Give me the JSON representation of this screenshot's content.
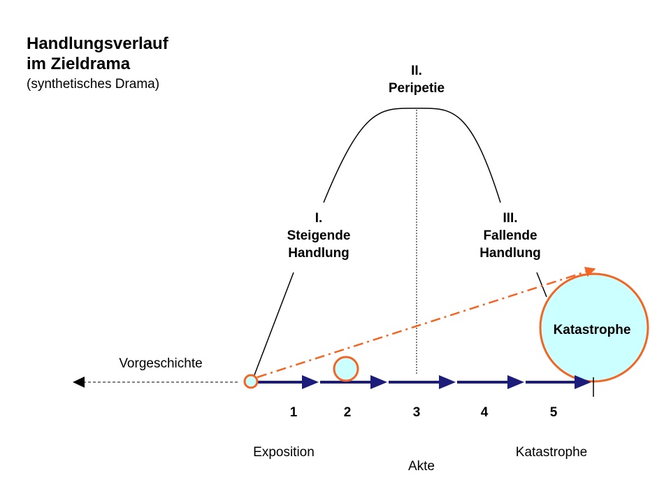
{
  "title": {
    "line1": "Handlungsverlauf",
    "line2": "im Zieldrama",
    "line3": "(synthetisches Drama)"
  },
  "phases": {
    "rising": {
      "num": "I.",
      "line1": "Steigende",
      "line2": "Handlung"
    },
    "peak": {
      "num": "II.",
      "line1": "Peripetie"
    },
    "falling": {
      "num": "III.",
      "line1": "Fallende",
      "line2": "Handlung"
    }
  },
  "labels": {
    "prehistory": "Vorgeschichte",
    "exposition": "Exposition",
    "catastrophe_axis": "Katastrophe",
    "acts": "Akte",
    "catastrophe_circle": "Katastrophe"
  },
  "acts": [
    "1",
    "2",
    "3",
    "4",
    "5"
  ],
  "colors": {
    "axis": "#1c1c7a",
    "accent": "#f26522",
    "circle_fill": "#ccffff",
    "line": "#000000"
  }
}
